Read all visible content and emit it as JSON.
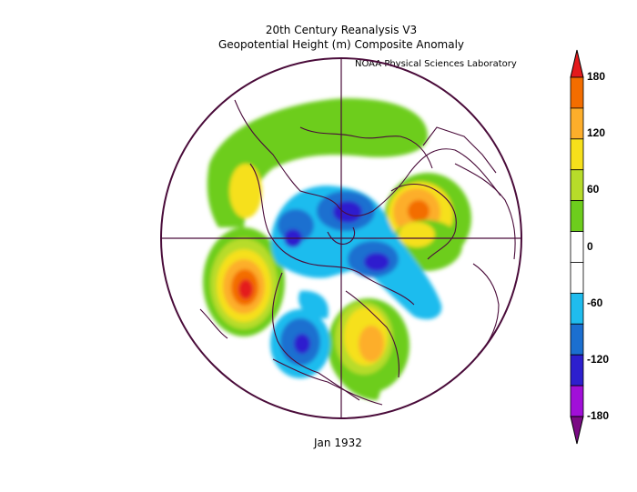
{
  "title": {
    "line1": "20th Century Reanalysis V3",
    "line2": "Geopotential Height (m) Composite Anomaly"
  },
  "credit": "NOAA Physical Sciences Laboratory",
  "date_label": "Jan 1932",
  "colorbar": {
    "labels": [
      "180",
      "120",
      "60",
      "0",
      "-60",
      "-120",
      "-180"
    ],
    "colors": [
      "#e41a1c",
      "#f36d00",
      "#fdae2b",
      "#f6e01b",
      "#b7dc2a",
      "#6dcd1d",
      "#ffffff",
      "#ffffff",
      "#1fbcee",
      "#1b6fd0",
      "#2d1fce",
      "#a10fd8",
      "#7a0a84"
    ]
  },
  "map": {
    "projection": "north-polar-stereographic",
    "field": "500mb geopotential height anomaly",
    "positive_centers": [
      "eastern-pacific",
      "eurasia",
      "eastern-north-america",
      "northwest-north-america",
      "north-pacific-arc"
    ],
    "negative_centers": [
      "western-north-america",
      "north-atlantic",
      "central-arctic",
      "western-pacific"
    ]
  }
}
